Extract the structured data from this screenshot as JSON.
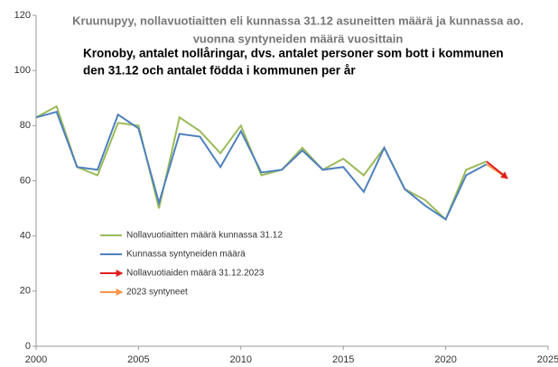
{
  "chart_data": {
    "type": "line",
    "title": [
      "Kruunupyy, nollavuotiaitten eli kunnassa 31.12 asuneitten määrä ja kunnassa ao.",
      "vuonna syntyneiden määrä vuosittain"
    ],
    "subtitle": [
      "Kronoby, antalet nollåringar, dvs. antalet personer som bott i kommunen",
      "den 31.12 och antalet födda i kommunen per år"
    ],
    "series": [
      {
        "name": "Nollavuotiaitten määrä kunnassa 31.12",
        "color": "#9bbb59",
        "x": [
          2000,
          2001,
          2002,
          2003,
          2004,
          2005,
          2006,
          2007,
          2008,
          2009,
          2010,
          2011,
          2012,
          2013,
          2014,
          2015,
          2016,
          2017,
          2018,
          2019,
          2020,
          2021,
          2022
        ],
        "values": [
          83,
          87,
          65,
          62,
          81,
          80,
          50,
          83,
          78,
          70,
          80,
          62,
          64,
          72,
          64,
          68,
          62,
          72,
          57,
          53,
          46,
          64,
          67
        ]
      },
      {
        "name": "Kunnassa syntyneiden määrä",
        "color": "#4f81bd",
        "x": [
          2000,
          2001,
          2002,
          2003,
          2004,
          2005,
          2006,
          2007,
          2008,
          2009,
          2010,
          2011,
          2012,
          2013,
          2014,
          2015,
          2016,
          2017,
          2018,
          2019,
          2020,
          2021,
          2022
        ],
        "values": [
          83,
          85,
          65,
          64,
          84,
          79,
          52,
          77,
          76,
          65,
          78,
          63,
          64,
          71,
          64,
          65,
          56,
          72,
          57,
          51,
          46,
          62,
          66
        ]
      },
      {
        "name": "Nollavuotiaiden määrä 31.12.2023",
        "color": "#e02020",
        "arrow": true,
        "x": [
          2022,
          2023
        ],
        "values": [
          67,
          61
        ]
      },
      {
        "name": "2023 syntyneet",
        "color": "#f79646",
        "arrow": true,
        "x": [
          2022,
          2023
        ],
        "values": [
          66,
          61
        ]
      }
    ],
    "xlim": [
      2000,
      2025
    ],
    "xticks": [
      2000,
      2005,
      2010,
      2015,
      2020,
      2025
    ],
    "ylim": [
      0,
      120
    ],
    "yticks": [
      0,
      20,
      40,
      60,
      80,
      100,
      120
    ],
    "grid": false
  }
}
